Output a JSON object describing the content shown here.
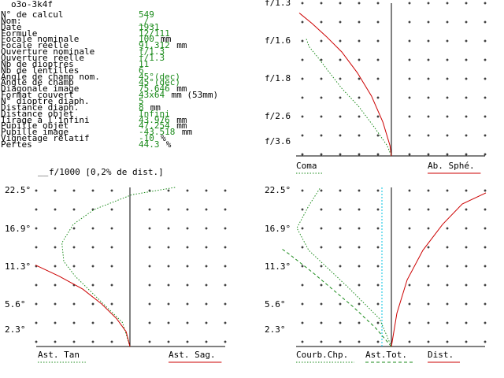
{
  "window": {
    "title": "o3o-3k4f"
  },
  "info": {
    "rows": [
      {
        "label": "N° de calcul",
        "value": "549",
        "unit": ""
      },
      {
        "label": "Nom:",
        "value": "_/_",
        "unit": ""
      },
      {
        "label": "Date",
        "value": "1931",
        "unit": ""
      },
      {
        "label": "Formule",
        "value": "12/111",
        "unit": ""
      },
      {
        "label": "Focale nominale",
        "value": "100",
        "unit": "mm"
      },
      {
        "label": "Focale réelle",
        "value": "91.312",
        "unit": "mm"
      },
      {
        "label": "Ouverture nominale",
        "value": "f/1.3",
        "unit": ""
      },
      {
        "label": "Ouverture réelle",
        "value": "f/1.3",
        "unit": ""
      },
      {
        "label": "Nb de dioptres",
        "value": "11",
        "unit": ""
      },
      {
        "label": "Nb de lentilles",
        "value": "6",
        "unit": ""
      },
      {
        "label": "Angle de champ nom.",
        "value": "45°(dec)",
        "unit": ""
      },
      {
        "label": "Angle de champ",
        "value": "45°(dec)",
        "unit": ""
      },
      {
        "label": "Diagonale image",
        "value": "75.646",
        "unit": "mm"
      },
      {
        "label": "Format couvert",
        "value": "43x64",
        "unit": "mm (53mm)"
      },
      {
        "label": "N° dioptre diaph.",
        "value": "5",
        "unit": ""
      },
      {
        "label": "Distance diaph.",
        "value": "8",
        "unit": "mm"
      },
      {
        "label": "Distance objet",
        "value": "Infini",
        "unit": ""
      },
      {
        "label": "Tirage à l'infini",
        "value": "43.976",
        "unit": "mm"
      },
      {
        "label": "Pupille objet",
        "value": "47.254",
        "unit": "mm"
      },
      {
        "label": "Pupille image",
        "value": "-43.518",
        "unit": "mm"
      },
      {
        "label": "Vignetage relatif",
        "value": "-10",
        "unit": "%"
      },
      {
        "label": "Pertes",
        "value": "44.3",
        "unit": "%"
      }
    ]
  },
  "colors": {
    "green": "#1a8a1a",
    "red": "#cc0000",
    "cyan": "#00c0e0"
  },
  "scale_note": "f/1000 [0,2% de dist.]",
  "chart_data": [
    {
      "type": "line",
      "name": "coma-spherical",
      "y_tick_labels": [
        "f/1.3",
        "f/1.6",
        "f/1.8",
        "f/2.6",
        "f/3.6"
      ],
      "legend": [
        {
          "label": "Coma",
          "color": "#1a8a1a",
          "style": "dotted"
        },
        {
          "label": "Ab. Sphé.",
          "color": "#cc0000",
          "style": "solid"
        }
      ],
      "series": [
        {
          "name": "Coma",
          "x": [
            -6,
            -5.8,
            -5.2,
            -4.5,
            -3.5,
            -2.3,
            -1.2,
            -0.3,
            0
          ],
          "y": [
            4.5,
            4.2,
            3.8,
            3.3,
            2.6,
            1.9,
            1.1,
            0.4,
            0
          ]
        },
        {
          "name": "Ab. Sphé.",
          "x": [
            -6.5,
            -5.6,
            -4.6,
            -3.5,
            -2.4,
            -1.4,
            -0.6,
            -0.1,
            0
          ],
          "y": [
            5.5,
            5.1,
            4.6,
            4.0,
            3.2,
            2.3,
            1.3,
            0.4,
            0
          ]
        }
      ]
    },
    {
      "type": "line",
      "name": "astigmatism",
      "y_tick_labels": [
        "22.5°",
        "16.9°",
        "11.3°",
        "5.6°",
        "2.3°"
      ],
      "legend": [
        {
          "label": "Ast. Tan",
          "color": "#1a8a1a",
          "style": "dotted"
        },
        {
          "label": "Ast. Sag.",
          "color": "#cc0000",
          "style": "solid"
        }
      ],
      "series": [
        {
          "name": "Ast. Tan",
          "x": [
            0,
            -0.8,
            -3.2,
            -5.8,
            -7,
            -7.2,
            -6,
            -3.8,
            0.2,
            4.8
          ],
          "y": [
            0,
            1.3,
            2.5,
            3.8,
            4.6,
            5.6,
            6.6,
            7.4,
            8.2,
            8.6
          ]
        },
        {
          "name": "Ast. Sag.",
          "x": [
            0,
            -0.4,
            -1.4,
            -3.0,
            -5.0,
            -7.5,
            -10
          ],
          "y": [
            0,
            0.8,
            1.5,
            2.3,
            3.1,
            3.8,
            4.4
          ]
        }
      ]
    },
    {
      "type": "line",
      "name": "field-curvature",
      "y_tick_labels": [
        "22.5°",
        "16.9°",
        "11.3°",
        "5.6°",
        "2.3°"
      ],
      "legend": [
        {
          "label": "Courb.Chp.",
          "color": "#1a8a1a",
          "style": "dotted"
        },
        {
          "label": "Ast.Tot.",
          "color": "#1a8a1a",
          "style": "dashed"
        },
        {
          "label": "Dist.",
          "color": "#cc0000",
          "style": "solid"
        }
      ],
      "series": [
        {
          "name": "Courb.Chp.",
          "x": [
            0,
            -1.5,
            -5.5,
            -10.5,
            -12,
            -10.5,
            -9
          ],
          "y": [
            0,
            1.5,
            3.2,
            5.2,
            6.4,
            7.6,
            8.6
          ]
        },
        {
          "name": "Ast.Tot.",
          "x": [
            0,
            -2,
            -5,
            -10,
            -13,
            -14
          ],
          "y": [
            0,
            1.0,
            2.2,
            4.0,
            5.0,
            5.3
          ]
        },
        {
          "name": "Dist.",
          "x": [
            0,
            0.7,
            2,
            4,
            6.5,
            9,
            12
          ],
          "y": [
            0,
            1.8,
            3.6,
            5.2,
            6.6,
            7.7,
            8.3
          ]
        }
      ],
      "vertical_marker": {
        "x": -1.2,
        "color": "#00c0e0"
      }
    }
  ]
}
